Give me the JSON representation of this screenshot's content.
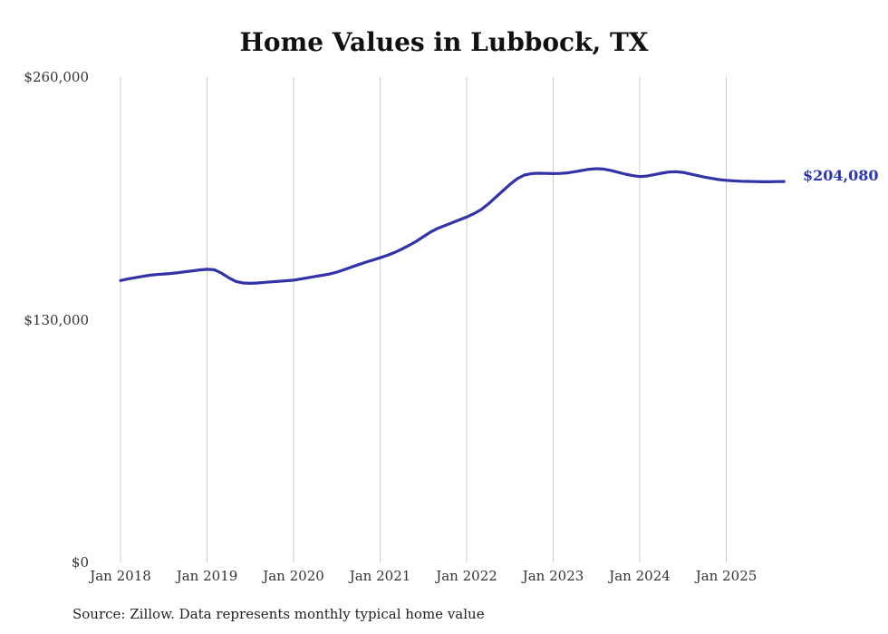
{
  "title": "Home Values in Lubbock, TX",
  "end_label": "$204,080",
  "source_note": "Source: Zillow. Data represents monthly typical home value",
  "colors": {
    "line": "#3333a8",
    "end_label": "#2b35b8",
    "grid": "#cccccc",
    "axis_text": "#333333"
  },
  "chart_data": {
    "type": "line",
    "title": "Home Values in Lubbock, TX",
    "xlabel": "",
    "ylabel": "",
    "ylim": [
      0,
      260000
    ],
    "y_tick_labels": [
      "$0",
      "$130,000",
      "$260,000"
    ],
    "y_tick_values": [
      0,
      130000,
      260000
    ],
    "x_tick_labels": [
      "Jan 2018",
      "Jan 2019",
      "Jan 2020",
      "Jan 2021",
      "Jan 2022",
      "Jan 2023",
      "Jan 2024",
      "Jan 2025"
    ],
    "grid": "vertical-only",
    "legend": "none",
    "final_value": 204080,
    "final_value_label": "$204,080",
    "series": [
      {
        "name": "Monthly typical home value",
        "start": "2018-01",
        "frequency": "monthly",
        "values": [
          151000,
          151800,
          152500,
          153200,
          153800,
          154200,
          154500,
          154800,
          155200,
          155700,
          156200,
          156700,
          157000,
          156800,
          155000,
          152500,
          150500,
          149700,
          149500,
          149700,
          150000,
          150300,
          150600,
          150900,
          151200,
          151800,
          152500,
          153200,
          153800,
          154500,
          155500,
          156800,
          158200,
          159500,
          160800,
          162000,
          163200,
          164500,
          166000,
          167800,
          169800,
          172000,
          174500,
          177000,
          179000,
          180500,
          182000,
          183500,
          185000,
          186800,
          189000,
          192000,
          195500,
          199000,
          202500,
          205500,
          207500,
          208300,
          208500,
          208400,
          208300,
          208400,
          208700,
          209300,
          210000,
          210600,
          210900,
          210700,
          210000,
          209000,
          208000,
          207200,
          206700,
          207000,
          207700,
          208500,
          209100,
          209300,
          208900,
          208100,
          207200,
          206400,
          205700,
          205100,
          204700,
          204400,
          204200,
          204100,
          204000,
          203900,
          203900,
          204000,
          204080
        ]
      }
    ]
  }
}
